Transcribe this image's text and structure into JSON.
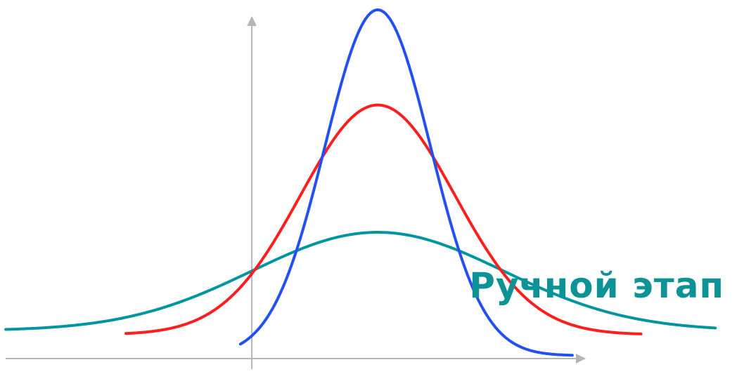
{
  "chart_data": {
    "type": "line",
    "title": "",
    "xlabel": "",
    "ylabel": "",
    "xlim": [
      -4.4,
      8.6
    ],
    "ylim": [
      -0.2,
      5.5
    ],
    "grid": false,
    "y_axis_at_x": 0,
    "series": [
      {
        "color": "#0095a0",
        "mean": 2.2,
        "sd": 2.2,
        "peak": 1.96,
        "baseline": 0.46,
        "x_range": [
          -4.3,
          8.1
        ]
      },
      {
        "color": "#ff1e1e",
        "mean": 2.2,
        "sd": 1.35,
        "peak": 3.9,
        "baseline": 0.4,
        "x_range": [
          -2.2,
          6.8
        ]
      },
      {
        "color": "#2550f0",
        "mean": 2.2,
        "sd": 0.92,
        "peak": 5.35,
        "baseline": 0.08,
        "x_range": [
          -0.2,
          5.6
        ]
      }
    ]
  },
  "annotation": {
    "text": "Ручной этап",
    "color": "#0d9396"
  }
}
